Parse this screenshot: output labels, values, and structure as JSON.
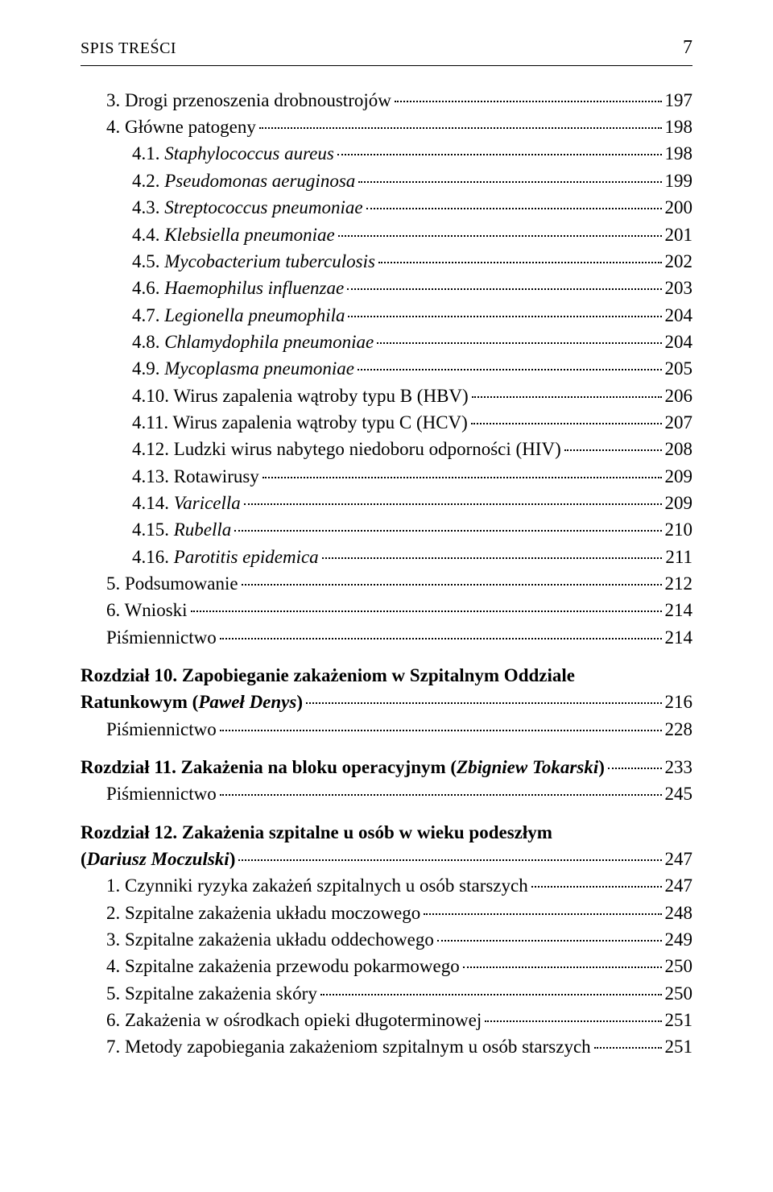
{
  "header": {
    "left": "SPIS TREŚCI",
    "pageNumber": "7"
  },
  "colors": {
    "text": "#000000",
    "background": "#ffffff"
  },
  "entries": [
    {
      "indent": 1,
      "pre": "3. ",
      "text": "Drogi przenoszenia drobnoustrojów",
      "page": "197"
    },
    {
      "indent": 1,
      "pre": "4. ",
      "text": "Główne patogeny",
      "page": "198"
    },
    {
      "indent": 2,
      "pre": "4.1. ",
      "text": "Staphylococcus aureus",
      "italic": true,
      "page": "198"
    },
    {
      "indent": 2,
      "pre": "4.2. ",
      "text": "Pseudomonas aeruginosa",
      "italic": true,
      "page": "199"
    },
    {
      "indent": 2,
      "pre": "4.3. ",
      "text": "Streptococcus pneumoniae",
      "italic": true,
      "page": "200"
    },
    {
      "indent": 2,
      "pre": "4.4. ",
      "text": "Klebsiella pneumoniae",
      "italic": true,
      "page": "201"
    },
    {
      "indent": 2,
      "pre": "4.5. ",
      "text": "Mycobacterium tuberculosis",
      "italic": true,
      "page": "202"
    },
    {
      "indent": 2,
      "pre": "4.6. ",
      "text": "Haemophilus influenzae",
      "italic": true,
      "page": "203"
    },
    {
      "indent": 2,
      "pre": "4.7. ",
      "text": "Legionella pneumophila",
      "italic": true,
      "page": "204"
    },
    {
      "indent": 2,
      "pre": "4.8. ",
      "text": "Chlamydophila pneumoniae",
      "italic": true,
      "page": "204"
    },
    {
      "indent": 2,
      "pre": "4.9. ",
      "text": "Mycoplasma pneumoniae",
      "italic": true,
      "page": "205"
    },
    {
      "indent": 2,
      "pre": "4.10. ",
      "text": "Wirus zapalenia wątroby typu B (HBV)",
      "page": "206"
    },
    {
      "indent": 2,
      "pre": "4.11. ",
      "text": "Wirus zapalenia wątroby typu C (HCV)",
      "page": "207"
    },
    {
      "indent": 2,
      "pre": "4.12. ",
      "text": "Ludzki wirus nabytego niedoboru odporności (HIV)",
      "page": "208"
    },
    {
      "indent": 2,
      "pre": "4.13. ",
      "text": "Rotawirusy",
      "page": "209"
    },
    {
      "indent": 2,
      "pre": "4.14. ",
      "text": "Varicella",
      "italic": true,
      "page": "209"
    },
    {
      "indent": 2,
      "pre": "4.15. ",
      "text": "Rubella",
      "italic": true,
      "page": "210"
    },
    {
      "indent": 2,
      "pre": "4.16. ",
      "text": "Parotitis epidemica",
      "italic": true,
      "page": "211"
    },
    {
      "indent": 1,
      "pre": "5. ",
      "text": "Podsumowanie",
      "page": "212"
    },
    {
      "indent": 1,
      "pre": "6. ",
      "text": "Wnioski",
      "page": "214"
    },
    {
      "indent": 1,
      "pre": "",
      "text": "Piśmiennictwo",
      "page": "214"
    }
  ],
  "chapter10": {
    "line1": "Rozdział 10. Zapobieganie zakażeniom w Szpitalnym Oddziale",
    "line2_pre": "Ratunkowym (",
    "line2_italic": "Paweł Denys",
    "line2_post": ")",
    "page": "216",
    "sub": [
      {
        "text": "Piśmiennictwo",
        "page": "228"
      }
    ]
  },
  "chapter11": {
    "pre": "Rozdział 11. Zakażenia na bloku operacyjnym (",
    "italic": "Zbigniew Tokarski",
    "post": ")",
    "page": "233",
    "sub": [
      {
        "text": "Piśmiennictwo",
        "page": "245"
      }
    ]
  },
  "chapter12": {
    "line1": "Rozdział 12. Zakażenia szpitalne u osób w wieku podeszłym",
    "line2_pre": "(",
    "line2_italic": "Dariusz Moczulski",
    "line2_post": ")",
    "page": "247",
    "sub": [
      {
        "pre": "1. ",
        "text": "Czynniki ryzyka zakażeń szpitalnych u osób starszych",
        "page": "247"
      },
      {
        "pre": "2. ",
        "text": "Szpitalne zakażenia układu moczowego",
        "page": "248"
      },
      {
        "pre": "3. ",
        "text": "Szpitalne zakażenia układu oddechowego",
        "page": "249"
      },
      {
        "pre": "4. ",
        "text": "Szpitalne zakażenia przewodu pokarmowego",
        "page": "250"
      },
      {
        "pre": "5. ",
        "text": "Szpitalne zakażenia skóry",
        "page": "250"
      },
      {
        "pre": "6. ",
        "text": "Zakażenia w ośrodkach opieki długoterminowej",
        "page": "251"
      },
      {
        "pre": "7. ",
        "text": "Metody zapobiegania zakażeniom szpitalnym u osób starszych",
        "page": "251"
      }
    ]
  }
}
